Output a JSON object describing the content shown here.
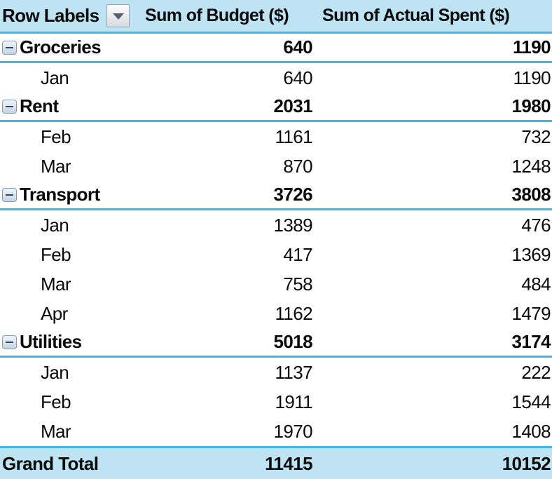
{
  "header": {
    "row_labels": "Row Labels",
    "budget": "Sum of Budget ($)",
    "actual": "Sum of Actual Spent ($)"
  },
  "rows": [
    {
      "type": "group",
      "label": "Groceries",
      "budget": 640,
      "actual": 1190
    },
    {
      "type": "detail",
      "label": "Jan",
      "budget": 640,
      "actual": 1190
    },
    {
      "type": "group",
      "label": "Rent",
      "budget": 2031,
      "actual": 1980
    },
    {
      "type": "detail",
      "label": "Feb",
      "budget": 1161,
      "actual": 732
    },
    {
      "type": "detail",
      "label": "Mar",
      "budget": 870,
      "actual": 1248
    },
    {
      "type": "group",
      "label": "Transport",
      "budget": 3726,
      "actual": 3808
    },
    {
      "type": "detail",
      "label": "Jan",
      "budget": 1389,
      "actual": 476
    },
    {
      "type": "detail",
      "label": "Feb",
      "budget": 417,
      "actual": 1369
    },
    {
      "type": "detail",
      "label": "Mar",
      "budget": 758,
      "actual": 484
    },
    {
      "type": "detail",
      "label": "Apr",
      "budget": 1162,
      "actual": 1479
    },
    {
      "type": "group",
      "label": "Utilities",
      "budget": 5018,
      "actual": 3174
    },
    {
      "type": "detail",
      "label": "Jan",
      "budget": 1137,
      "actual": 222
    },
    {
      "type": "detail",
      "label": "Feb",
      "budget": 1911,
      "actual": 1544
    },
    {
      "type": "detail",
      "label": "Mar",
      "budget": 1970,
      "actual": 1408
    }
  ],
  "grand_total": {
    "label": "Grand Total",
    "budget": 11415,
    "actual": 10152
  },
  "icons": {
    "filter_dropdown": "chevron-down-icon",
    "collapse": "minus-icon"
  },
  "colors": {
    "band_bg": "#BEE3F3",
    "rule_blue": "#41B7E7",
    "text": "#0A0A0A"
  }
}
